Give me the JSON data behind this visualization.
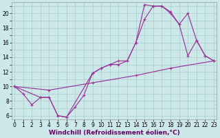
{
  "background_color": "#cce8e8",
  "grid_color": "#aacccc",
  "line_color": "#993399",
  "xlabel": "Windchill (Refroidissement éolien,°C)",
  "xlabel_fontsize": 6.5,
  "xlabel_color": "#660066",
  "y_ticks": [
    6,
    8,
    10,
    12,
    14,
    16,
    18,
    20
  ],
  "y_minor_ticks": [
    7,
    9,
    11,
    13,
    15,
    17,
    19,
    21
  ],
  "x_ticks": [
    0,
    1,
    2,
    3,
    4,
    5,
    6,
    7,
    8,
    9,
    10,
    11,
    12,
    13,
    14,
    15,
    16,
    17,
    18,
    19,
    20,
    21,
    22,
    23
  ],
  "xlim": [
    -0.3,
    23.3
  ],
  "ylim": [
    5.5,
    21.5
  ],
  "series": [
    {
      "x": [
        0,
        1,
        2,
        3,
        4,
        5,
        6,
        7,
        8,
        9,
        10,
        11,
        12,
        13,
        14,
        15,
        16,
        17,
        18,
        19,
        20,
        21,
        22,
        23
      ],
      "y": [
        10.0,
        9.0,
        7.5,
        8.5,
        8.5,
        6.0,
        5.8,
        7.2,
        8.8,
        11.8,
        12.5,
        13.0,
        13.0,
        13.5,
        16.0,
        21.2,
        21.0,
        21.0,
        20.0,
        18.5,
        14.2,
        16.3,
        14.2,
        13.5
      ]
    },
    {
      "x": [
        0,
        3,
        4,
        5,
        6,
        9,
        10,
        11,
        12,
        13,
        14,
        15,
        16,
        17,
        18,
        19,
        20,
        21,
        22,
        23
      ],
      "y": [
        10.0,
        8.5,
        8.5,
        6.0,
        5.8,
        11.8,
        12.5,
        13.0,
        13.5,
        13.5,
        16.0,
        19.2,
        21.0,
        21.0,
        20.2,
        18.5,
        20.0,
        16.3,
        14.2,
        13.5
      ]
    },
    {
      "x": [
        0,
        4,
        9,
        14,
        18,
        23
      ],
      "y": [
        10.0,
        9.5,
        10.5,
        11.5,
        12.5,
        13.5
      ]
    }
  ]
}
